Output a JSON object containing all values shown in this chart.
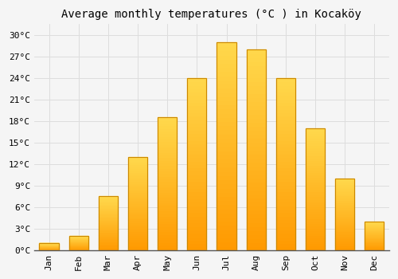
{
  "months": [
    "Jan",
    "Feb",
    "Mar",
    "Apr",
    "May",
    "Jun",
    "Jul",
    "Aug",
    "Sep",
    "Oct",
    "Nov",
    "Dec"
  ],
  "values": [
    1.0,
    2.0,
    7.5,
    13.0,
    18.5,
    24.0,
    29.0,
    28.0,
    24.0,
    17.0,
    10.0,
    4.0
  ],
  "bar_color": "#FFBB33",
  "bar_edge_color": "#CC8800",
  "title": "Average monthly temperatures (°C ) in Kocaköy",
  "ylabel_ticks": [
    0,
    3,
    6,
    9,
    12,
    15,
    18,
    21,
    24,
    27,
    30
  ],
  "ylim": [
    0,
    31.5
  ],
  "background_color": "#f5f5f5",
  "grid_color": "#dddddd",
  "title_fontsize": 10,
  "tick_fontsize": 8,
  "font_family": "monospace"
}
